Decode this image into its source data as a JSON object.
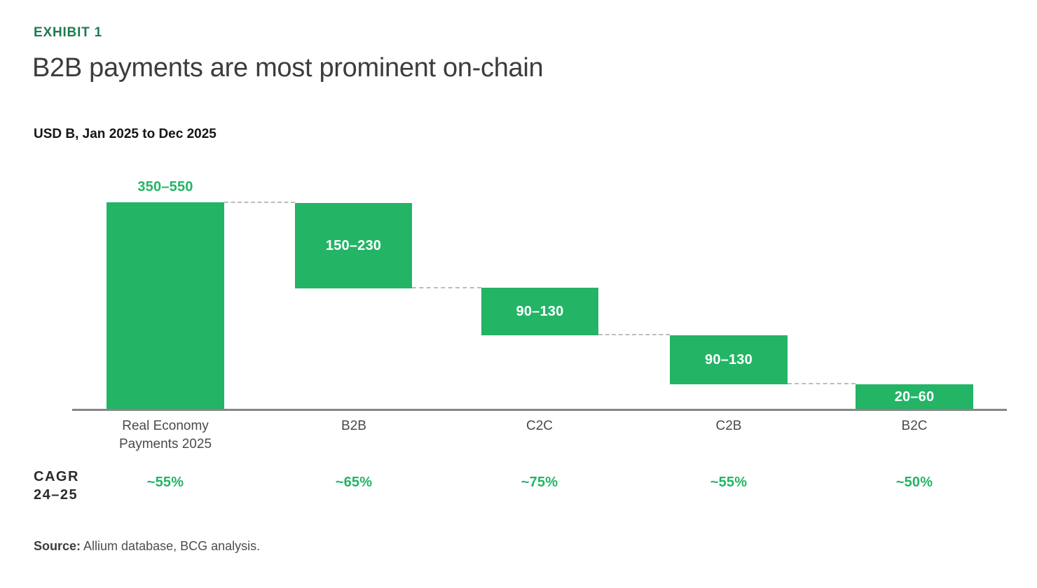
{
  "header": {
    "exhibit_label": "EXHIBIT 1",
    "title": "B2B payments are most prominent on-chain",
    "subtitle": "USD B, Jan 2025 to Dec 2025"
  },
  "chart_data": {
    "type": "bar",
    "subtype": "waterfall",
    "title": "B2B payments are most prominent on-chain",
    "unit_label": "USD B, Jan 2025 to Dec 2025",
    "categories": [
      "Real Economy Payments 2025",
      "B2B",
      "C2C",
      "C2B",
      "B2C"
    ],
    "bars": [
      {
        "category": "Real Economy Payments 2025",
        "range_label": "350–550",
        "range_min": 350,
        "range_max": 550,
        "role": "total",
        "value_label_position": "above"
      },
      {
        "category": "B2B",
        "range_label": "150–230",
        "range_min": 150,
        "range_max": 230,
        "role": "segment",
        "value_label_position": "inside"
      },
      {
        "category": "C2C",
        "range_label": "90–130",
        "range_min": 90,
        "range_max": 130,
        "role": "segment",
        "value_label_position": "inside"
      },
      {
        "category": "C2B",
        "range_label": "90–130",
        "range_min": 90,
        "range_max": 130,
        "role": "segment",
        "value_label_position": "inside"
      },
      {
        "category": "B2C",
        "range_label": "20–60",
        "range_min": 20,
        "range_max": 60,
        "role": "segment",
        "value_label_position": "inside"
      }
    ],
    "colors": {
      "bar_green": "#23b466",
      "exhibit_green": "#1e7b51",
      "axis_gray": "#868686",
      "connector_gray": "#bdbdbd",
      "value_text_inside": "#ffffff"
    },
    "grid": false,
    "legend": false,
    "connectors": "dashed between successive bars"
  },
  "cagr": {
    "header_line1": "CAGR",
    "header_line2": "24–25",
    "values": [
      "~55%",
      "~65%",
      "~75%",
      "~55%",
      "~50%"
    ]
  },
  "source": {
    "prefix": "Source:",
    "text": " Allium database, BCG analysis."
  }
}
